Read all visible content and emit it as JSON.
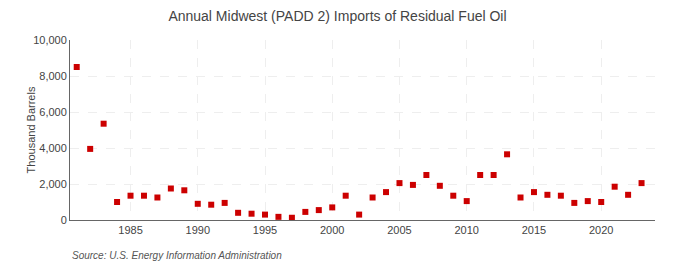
{
  "chart_data": {
    "type": "scatter",
    "title": "Annual Midwest (PADD 2) Imports of Residual Fuel Oil",
    "ylabel": "Thousand Barrels",
    "annotations": [
      "Source: U.S. Energy Information Administration"
    ],
    "x": [
      1981,
      1982,
      1983,
      1984,
      1985,
      1986,
      1987,
      1988,
      1989,
      1990,
      1991,
      1992,
      1993,
      1994,
      1995,
      1996,
      1997,
      1998,
      1999,
      2000,
      2001,
      2002,
      2003,
      2004,
      2005,
      2006,
      2007,
      2008,
      2009,
      2010,
      2011,
      2012,
      2013,
      2014,
      2015,
      2016,
      2017,
      2018,
      2019,
      2020,
      2021,
      2022,
      2023
    ],
    "values": [
      8500,
      3950,
      5350,
      1000,
      1350,
      1350,
      1250,
      1750,
      1650,
      900,
      850,
      950,
      400,
      350,
      300,
      175,
      125,
      450,
      550,
      700,
      1350,
      300,
      1250,
      1550,
      2050,
      1950,
      2500,
      1900,
      1350,
      1050,
      2500,
      2500,
      3650,
      1250,
      1550,
      1400,
      1350,
      950,
      1050,
      1000,
      1850,
      1400,
      2050
    ],
    "color": "#cc0000",
    "marker": "square",
    "xlim": [
      1980.5,
      2024
    ],
    "xticks": [
      1985,
      1990,
      1995,
      2000,
      2005,
      2010,
      2015,
      2020
    ],
    "ylim": [
      0,
      10000
    ],
    "yticks": [
      0,
      {
        "value": 2000,
        "label": "2,000"
      },
      {
        "value": 4000,
        "label": "4,000"
      },
      {
        "value": 6000,
        "label": "6,000"
      },
      {
        "value": 8000,
        "label": "8,000"
      },
      {
        "value": 10000,
        "label": "10,000"
      }
    ],
    "grid": true
  }
}
